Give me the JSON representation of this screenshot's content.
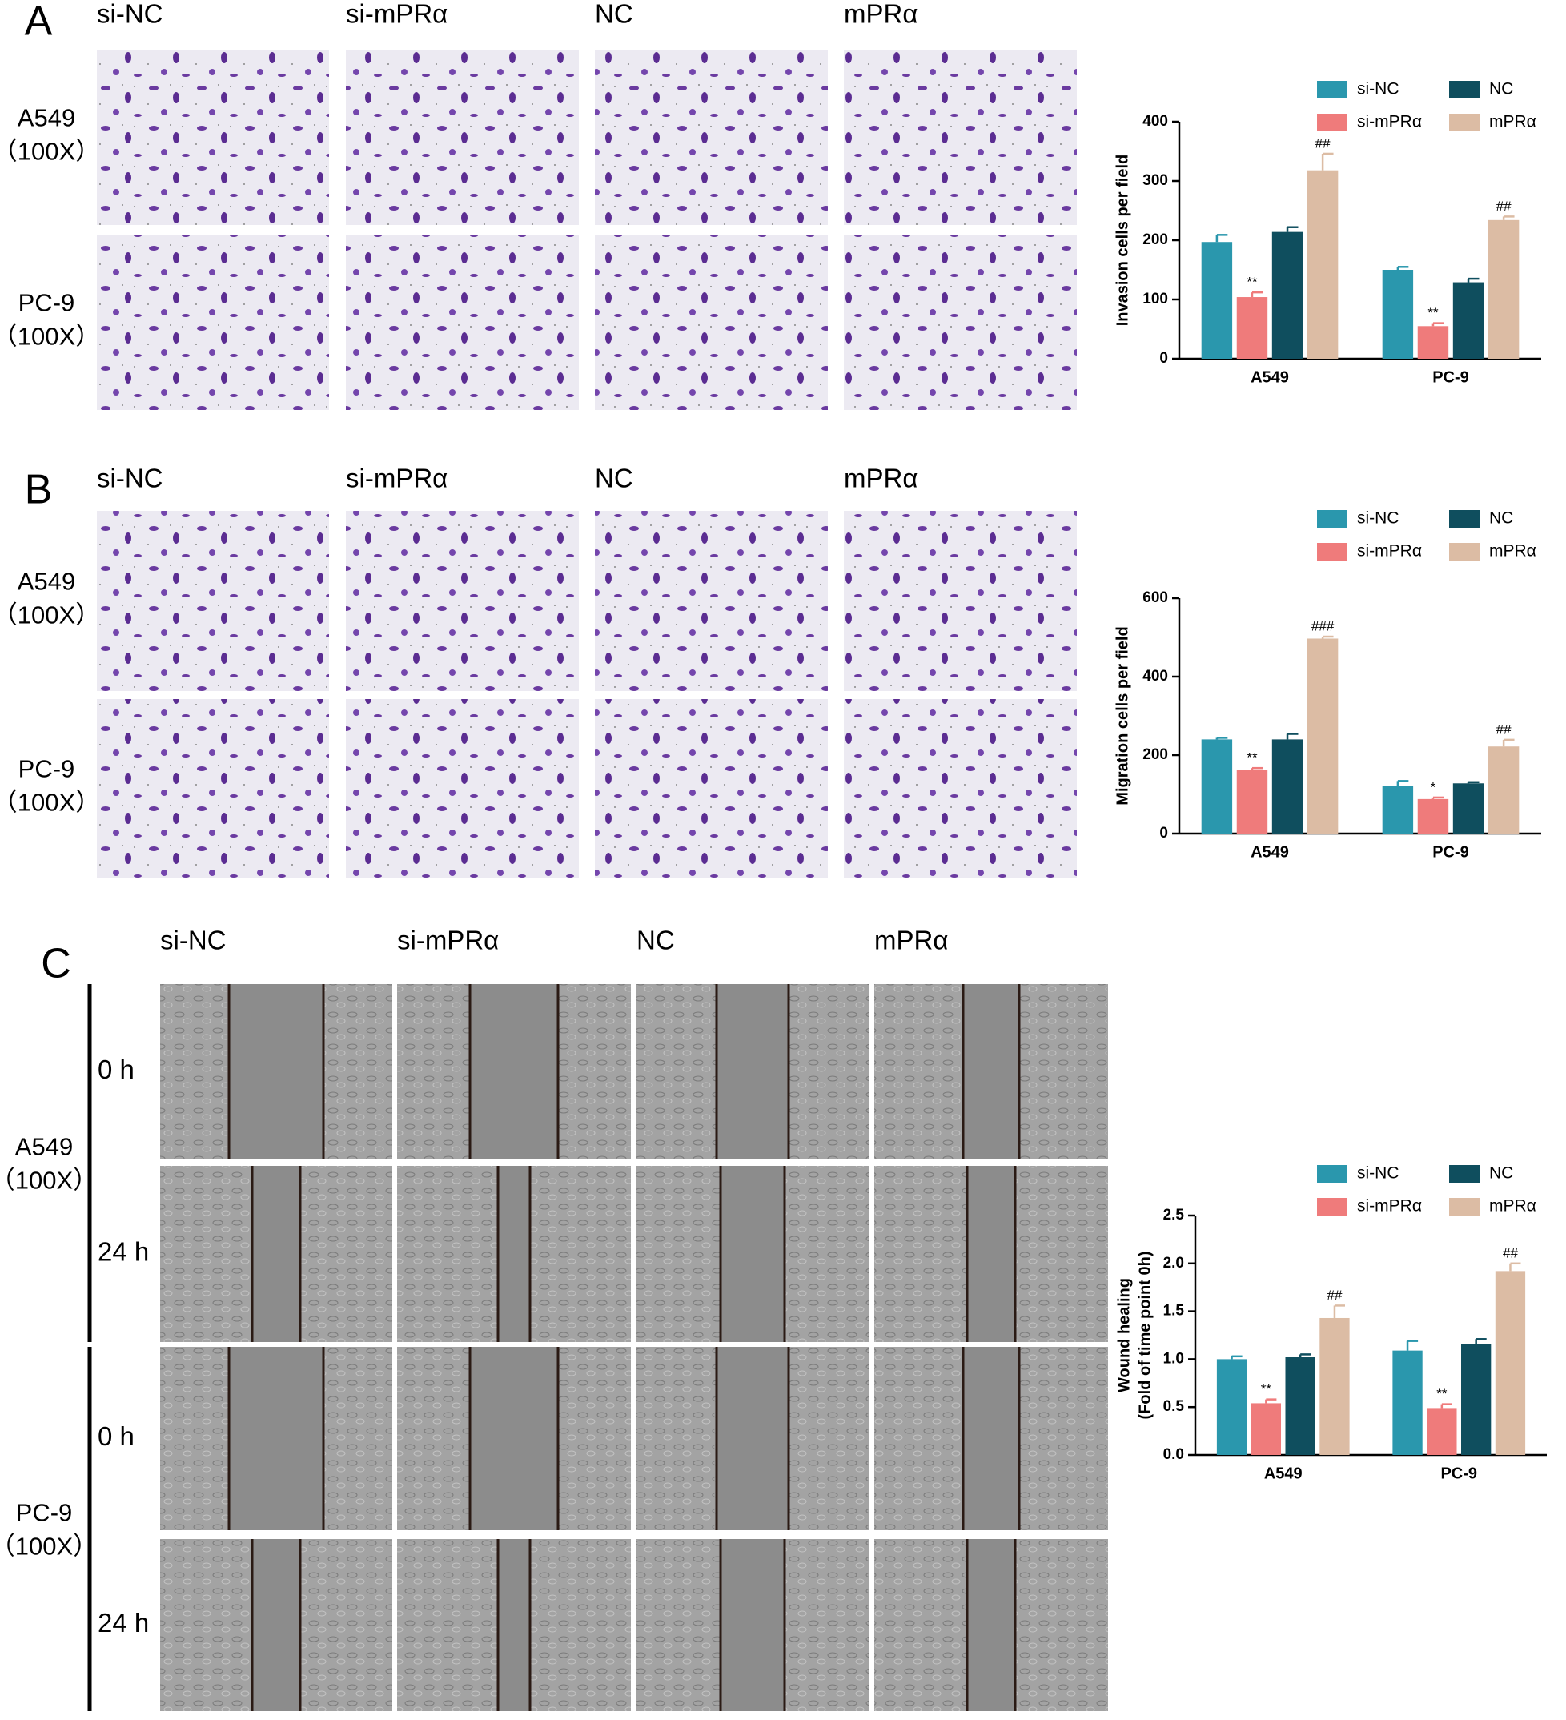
{
  "panels": [
    {
      "label": "A",
      "columns": [
        "si-NC",
        "si-mPRα",
        "NC",
        "mPRα"
      ],
      "rows": [
        [
          "A549",
          "（100X）"
        ],
        [
          "PC-9",
          "（100X）"
        ]
      ]
    },
    {
      "label": "B",
      "columns": [
        "si-NC",
        "si-mPRα",
        "NC",
        "mPRα"
      ],
      "rows": [
        [
          "A549",
          "（100X）"
        ],
        [
          "PC-9",
          "（100X）"
        ]
      ]
    },
    {
      "label": "C",
      "columns": [
        "si-NC",
        "si-mPRα",
        "NC",
        "mPRα"
      ],
      "groups": [
        {
          "name": [
            "A549",
            "（100X）"
          ],
          "times": [
            "0 h",
            "24 h"
          ]
        },
        {
          "name": [
            "PC-9",
            "（100X）"
          ],
          "times": [
            "0 h",
            "24 h"
          ]
        }
      ]
    }
  ],
  "chart_data": [
    {
      "type": "bar",
      "y_label": [
        "Invasion cells per field"
      ],
      "categories": [
        "A549",
        "PC-9"
      ],
      "series": [
        {
          "name": "si-NC",
          "color": "#2a97ad",
          "values": [
            197,
            150
          ],
          "errors": [
            12,
            5
          ]
        },
        {
          "name": "si-mPRα",
          "color": "#ef7b7b",
          "values": [
            104,
            55
          ],
          "errors": [
            8,
            5
          ],
          "value_labels": [
            "**",
            "**"
          ]
        },
        {
          "name": "NC",
          "color": "#0f4e5e",
          "values": [
            214,
            129
          ],
          "errors": [
            8,
            6
          ]
        },
        {
          "name": "mPRα",
          "color": "#dcbca4",
          "values": [
            318,
            234
          ],
          "errors": [
            28,
            6
          ],
          "value_labels": [
            "##",
            "##"
          ]
        }
      ],
      "ylim": [
        0,
        400
      ],
      "yticks": [
        0,
        100,
        200,
        300,
        400
      ]
    },
    {
      "type": "bar",
      "y_label": [
        "Migration cells per field"
      ],
      "categories": [
        "A549",
        "PC-9"
      ],
      "series": [
        {
          "name": "si-NC",
          "color": "#2a97ad",
          "values": [
            240,
            122
          ],
          "errors": [
            4,
            12
          ]
        },
        {
          "name": "si-mPRα",
          "color": "#ef7b7b",
          "values": [
            162,
            88
          ],
          "errors": [
            5,
            4
          ],
          "value_labels": [
            "**",
            "*"
          ]
        },
        {
          "name": "NC",
          "color": "#0f4e5e",
          "values": [
            240,
            128
          ],
          "errors": [
            14,
            3
          ]
        },
        {
          "name": "mPRα",
          "color": "#dcbca4",
          "values": [
            497,
            222
          ],
          "errors": [
            5,
            17
          ],
          "value_labels": [
            "###",
            "##"
          ]
        }
      ],
      "ylim": [
        0,
        600
      ],
      "yticks": [
        0,
        200,
        400,
        600
      ]
    },
    {
      "type": "bar",
      "y_label": [
        "Wound healing",
        "(Fold of time point 0h)"
      ],
      "categories": [
        "A549",
        "PC-9"
      ],
      "series": [
        {
          "name": "si-NC",
          "color": "#2a97ad",
          "values": [
            1.0,
            1.09
          ],
          "errors": [
            0.03,
            0.1
          ]
        },
        {
          "name": "si-mPRα",
          "color": "#ef7b7b",
          "values": [
            0.54,
            0.49
          ],
          "errors": [
            0.04,
            0.04
          ],
          "value_labels": [
            "**",
            "**"
          ]
        },
        {
          "name": "NC",
          "color": "#0f4e5e",
          "values": [
            1.02,
            1.16
          ],
          "errors": [
            0.03,
            0.05
          ]
        },
        {
          "name": "mPRα",
          "color": "#dcbca4",
          "values": [
            1.43,
            1.92
          ],
          "errors": [
            0.13,
            0.08
          ],
          "value_labels": [
            "##",
            "##"
          ]
        }
      ],
      "ylim": [
        0,
        2.5
      ],
      "yticks": [
        {
          "value": 0,
          "label": "0.0"
        },
        {
          "value": 0.5,
          "label": "0.5"
        },
        {
          "value": 1,
          "label": "1.0"
        },
        {
          "value": 1.5,
          "label": "1.5"
        },
        {
          "value": 2,
          "label": "2.0"
        },
        {
          "value": 2.5,
          "label": "2.5"
        }
      ]
    }
  ]
}
